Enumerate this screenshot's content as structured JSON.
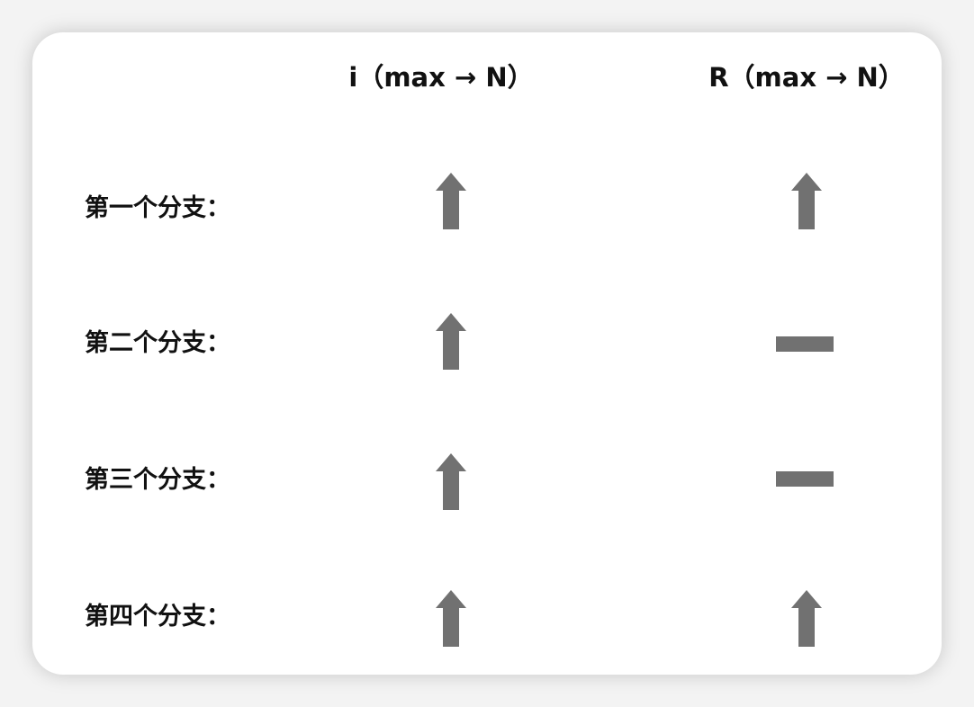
{
  "columns": [
    {
      "label": "i（max → N）"
    },
    {
      "label": "R（max → N）"
    }
  ],
  "rows": [
    {
      "label": "第一个分支：",
      "i": "increase",
      "R": "increase"
    },
    {
      "label": "第二个分支：",
      "i": "increase",
      "R": "unchanged"
    },
    {
      "label": "第三个分支：",
      "i": "increase",
      "R": "unchanged"
    },
    {
      "label": "第四个分支：",
      "i": "increase",
      "R": "increase"
    }
  ],
  "icons": {
    "increase": "up-arrow-icon",
    "unchanged": "horizontal-bar-icon"
  },
  "colors": {
    "symbol": "#717171",
    "text": "#111111",
    "card": "#ffffff",
    "background": "#f3f3f3"
  }
}
